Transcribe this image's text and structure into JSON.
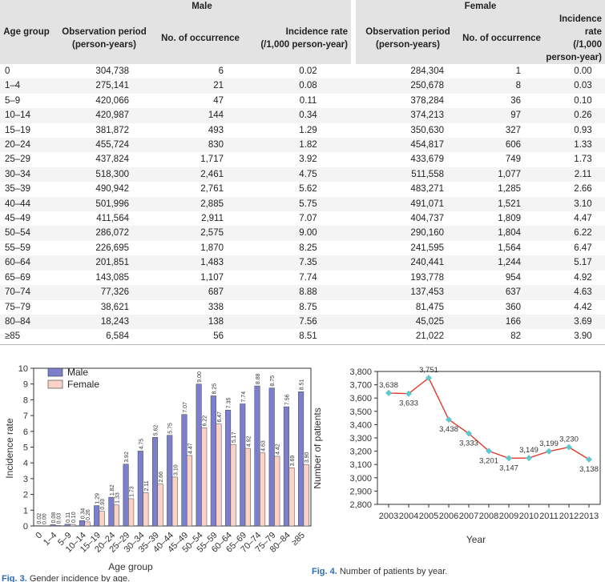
{
  "table": {
    "group_headers": {
      "age_group": "Age group",
      "male": "Male",
      "female": "Female"
    },
    "sub_headers": {
      "obs_line1": "Observation period",
      "obs_line2": "(person-years)",
      "occurrence": "No. of occurrence",
      "rate_line1": "Incidence rate",
      "rate_line2": "(/1,000 person-year)"
    },
    "rows": [
      [
        "0",
        "304,738",
        "6",
        "0.02",
        "284,304",
        "1",
        "0.00"
      ],
      [
        "1–4",
        "275,141",
        "21",
        "0.08",
        "250,678",
        "8",
        "0.03"
      ],
      [
        "5–9",
        "420,066",
        "47",
        "0.11",
        "378,284",
        "36",
        "0.10"
      ],
      [
        "10–14",
        "420,987",
        "144",
        "0.34",
        "374,213",
        "97",
        "0.26"
      ],
      [
        "15–19",
        "381,872",
        "493",
        "1.29",
        "350,630",
        "327",
        "0.93"
      ],
      [
        "20–24",
        "455,724",
        "830",
        "1.82",
        "454,817",
        "606",
        "1.33"
      ],
      [
        "25–29",
        "437,824",
        "1,717",
        "3.92",
        "433,679",
        "749",
        "1.73"
      ],
      [
        "30–34",
        "518,300",
        "2,461",
        "4.75",
        "511,558",
        "1,077",
        "2.11"
      ],
      [
        "35–39",
        "490,942",
        "2,761",
        "5.62",
        "483,271",
        "1,285",
        "2.66"
      ],
      [
        "40–44",
        "501,996",
        "2,885",
        "5.75",
        "491,071",
        "1,521",
        "3.10"
      ],
      [
        "45–49",
        "411,564",
        "2,911",
        "7.07",
        "404,737",
        "1,809",
        "4.47"
      ],
      [
        "50–54",
        "286,072",
        "2,575",
        "9.00",
        "290,160",
        "1,804",
        "6.22"
      ],
      [
        "55–59",
        "226,695",
        "1,870",
        "8.25",
        "241,595",
        "1,564",
        "6.47"
      ],
      [
        "60–64",
        "201,851",
        "1,483",
        "7.35",
        "240,441",
        "1,244",
        "5.17"
      ],
      [
        "65–69",
        "143,085",
        "1,107",
        "7.74",
        "193,778",
        "954",
        "4.92"
      ],
      [
        "70–74",
        "77,326",
        "687",
        "8.88",
        "137,453",
        "637",
        "4.63"
      ],
      [
        "75–79",
        "38,621",
        "338",
        "8.75",
        "81,475",
        "360",
        "4.42"
      ],
      [
        "80–84",
        "18,243",
        "138",
        "7.56",
        "45,025",
        "166",
        "3.69"
      ],
      [
        "≥85",
        "6,584",
        "56",
        "8.51",
        "21,022",
        "82",
        "3.90"
      ]
    ]
  },
  "chart_data": [
    {
      "type": "bar",
      "categories": [
        "0",
        "1–4",
        "5–9",
        "10–14",
        "15–19",
        "20–24",
        "25–29",
        "30–34",
        "35–39",
        "40–44",
        "45–49",
        "50–54",
        "55–59",
        "60–64",
        "65–69",
        "70–74",
        "75–79",
        "80–84",
        "≥85"
      ],
      "series": [
        {
          "name": "Male",
          "values": [
            0.02,
            0.08,
            0.11,
            0.34,
            1.29,
            1.82,
            3.92,
            4.75,
            5.62,
            5.75,
            7.07,
            9.0,
            8.25,
            7.35,
            7.74,
            8.88,
            8.75,
            7.56,
            8.51
          ],
          "color": "#7b7fcc"
        },
        {
          "name": "Female",
          "values": [
            0.0,
            0.03,
            0.1,
            0.26,
            0.93,
            1.33,
            1.73,
            2.11,
            2.66,
            3.1,
            4.47,
            6.22,
            6.47,
            5.17,
            4.92,
            4.63,
            4.42,
            3.69,
            3.9
          ],
          "color": "#fbd3c6"
        }
      ],
      "data_labels": {
        "Male": [
          "0.02",
          "0.08",
          "0.11",
          "0.34",
          "1.29",
          "1.82",
          "3.92",
          "4.75",
          "5.62",
          "5.75",
          "7.07",
          "9.00",
          "8.25",
          "7.35",
          "7.74",
          "8.88",
          "8.75",
          "7.56",
          "8.51"
        ],
        "Female": [
          "0.00",
          "0.03",
          "0.10",
          "0.26",
          "0.93",
          "1.33",
          "1.73",
          "2.11",
          "2.66",
          "3.10",
          "4.47",
          "6.22",
          "6.47",
          "5.17",
          "4.92",
          "4.63",
          "4.42",
          "3.69",
          "3.90"
        ]
      },
      "xlabel": "Age group",
      "ylabel": "Incidence rate",
      "ylim": [
        0,
        10
      ],
      "yticks": [
        "0",
        "1",
        "2",
        "3",
        "4",
        "5",
        "6",
        "7",
        "8",
        "9",
        "10"
      ],
      "grid": false,
      "legend": "top-left",
      "caption_label": "Fig. 3.",
      "caption_text": "Gender incidence by age."
    },
    {
      "type": "line",
      "x": [
        "2003",
        "2004",
        "2005",
        "2006",
        "2007",
        "2008",
        "2009",
        "2010",
        "2011",
        "2012",
        "2013"
      ],
      "values": [
        3638,
        3633,
        3751,
        3438,
        3333,
        3201,
        3147,
        3149,
        3199,
        3230,
        3138
      ],
      "data_labels": [
        "3,638",
        "3,633",
        "3,751",
        "3,438",
        "3,333",
        "3,201",
        "3,147",
        "3,149",
        "3,199",
        "3,230",
        "3,138"
      ],
      "xlabel": "Year",
      "ylabel": "Number of patients",
      "ylim": [
        2800,
        3800
      ],
      "yticks": [
        "2,800",
        "2,900",
        "3,000",
        "3,100",
        "3,200",
        "3,300",
        "3,400",
        "3,500",
        "3,600",
        "3,700",
        "3,800"
      ],
      "line_color": "#e03a2a",
      "marker_color": "#5fc7cf",
      "grid": false,
      "caption_label": "Fig. 4.",
      "caption_text": "Number of patients by year."
    }
  ]
}
